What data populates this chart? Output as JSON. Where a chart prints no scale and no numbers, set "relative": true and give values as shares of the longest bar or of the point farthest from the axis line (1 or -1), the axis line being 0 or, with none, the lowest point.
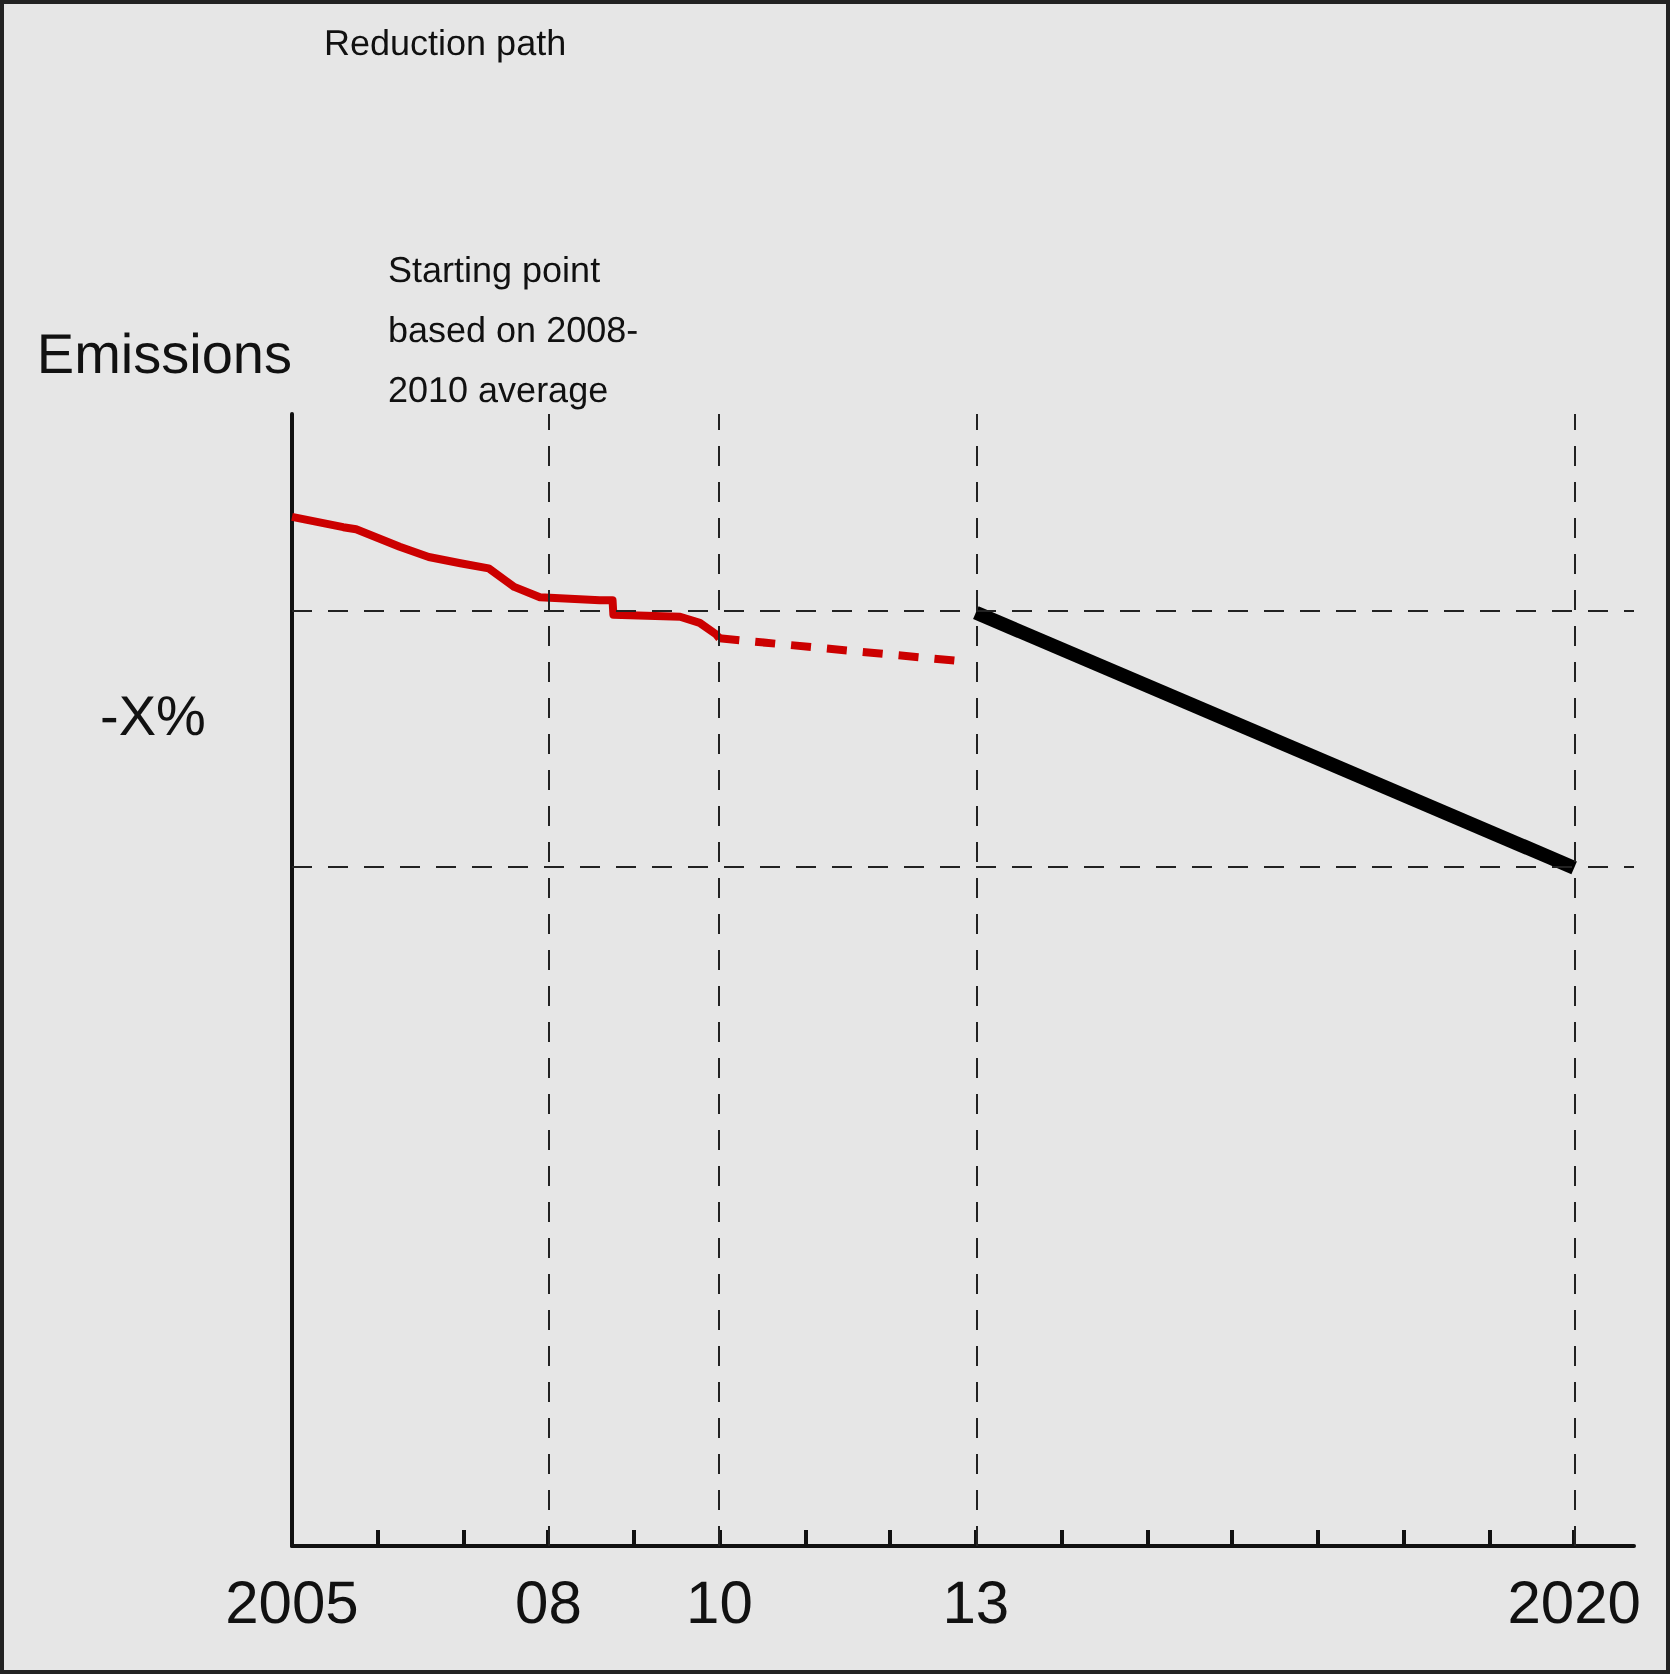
{
  "chart_data": {
    "type": "line",
    "relative": true,
    "ylabel": "Emissions",
    "xlim": [
      2005,
      2020.7
    ],
    "xticks": [
      {
        "value": 2005,
        "label": "2005"
      },
      {
        "value": 2006,
        "label": null
      },
      {
        "value": 2007,
        "label": null
      },
      {
        "value": 2008,
        "label": "08"
      },
      {
        "value": 2009,
        "label": null
      },
      {
        "value": 2010,
        "label": "10"
      },
      {
        "value": 2011,
        "label": null
      },
      {
        "value": 2012,
        "label": null
      },
      {
        "value": 2013,
        "label": "13"
      },
      {
        "value": 2014,
        "label": null
      },
      {
        "value": 2015,
        "label": null
      },
      {
        "value": 2016,
        "label": null
      },
      {
        "value": 2017,
        "label": null
      },
      {
        "value": 2018,
        "label": null
      },
      {
        "value": 2019,
        "label": null
      },
      {
        "value": 2020,
        "label": "2020"
      }
    ],
    "series": [
      {
        "color": "#cc0000",
        "line_style": "solid",
        "x": [
          2005,
          2005.6,
          2005.75,
          2006.26,
          2006.6,
          2006.97,
          2007.3,
          2007.6,
          2007.9,
          2008.6,
          2008.75,
          2008.76,
          2009.54,
          2009.77,
          2009.96,
          2010
        ],
        "values": [
          1.0,
          0.99,
          0.988,
          0.971,
          0.961,
          0.955,
          0.95,
          0.932,
          0.922,
          0.919,
          0.919,
          0.905,
          0.903,
          0.897,
          0.886,
          0.882
        ]
      },
      {
        "color": "#cc0000",
        "line_style": "dashed",
        "x": [
          2010,
          2012.8
        ],
        "values": [
          0.882,
          0.86
        ]
      },
      {
        "color": "#000000",
        "line_style": "solid",
        "x": [
          2013,
          2020
        ],
        "values": [
          0.907,
          0.659
        ]
      }
    ],
    "ref_lines": [
      {
        "axis": "x",
        "value": 2008,
        "line_style": "dashed"
      },
      {
        "axis": "x",
        "value": 2010,
        "line_style": "dashed"
      },
      {
        "axis": "x",
        "value": 2013,
        "line_style": "dashed"
      },
      {
        "axis": "x",
        "value": 2020,
        "line_style": "dashed"
      },
      {
        "axis": "y",
        "value": 0.907,
        "line_style": "dashed"
      },
      {
        "axis": "y",
        "value": 0.659,
        "line_style": "dashed"
      }
    ],
    "annotations": [
      "Reduction path",
      "Starting point\nbased on 2008-\n2010 average",
      "-X%"
    ],
    "marker": "none",
    "grid": false
  }
}
